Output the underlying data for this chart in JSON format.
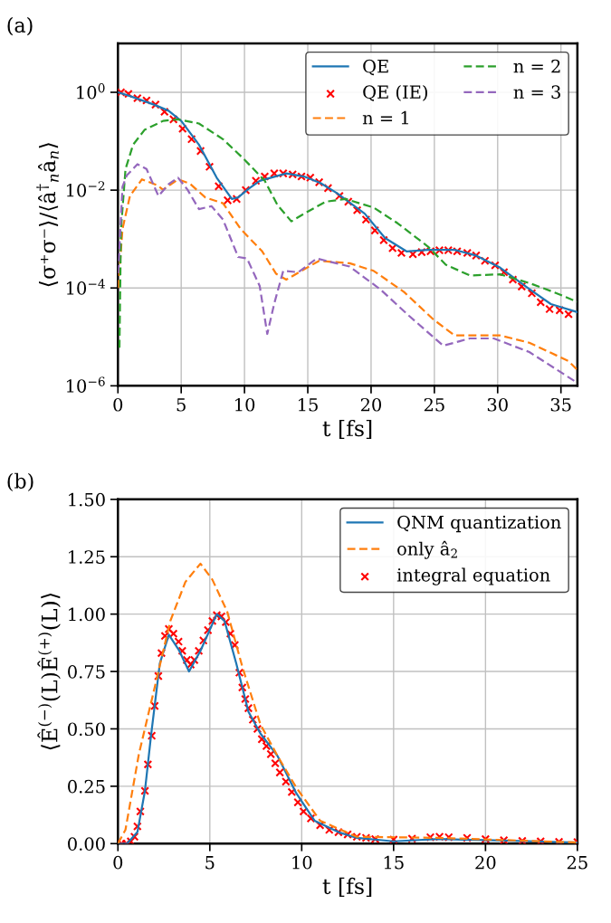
{
  "chart_data": [
    {
      "type": "line",
      "xlabel": "t [fs]",
      "ylabel": "⟨σ⁺σ⁻⟩/⟨â$^{†}$$_{n}$â$_{n}$⟩",
      "annotations": [
        "(a)"
      ],
      "log": "y",
      "grid": true,
      "legend": "top right",
      "xlim": [
        0,
        36.3
      ],
      "ylim": [
        1e-06,
        10
      ],
      "xticks": [
        0,
        5,
        10,
        15,
        20,
        25,
        30,
        35
      ],
      "yticks": [
        {
          "value": 1e-06,
          "label": "10$^{−6}$"
        },
        {
          "value": 0.0001,
          "label": "10$^{−4}$"
        },
        {
          "value": 0.01,
          "label": "10$^{−2}$"
        },
        {
          "value": 1,
          "label": "10$^{0}$"
        }
      ],
      "series": [
        {
          "name": "QE",
          "color": "#1f77b4",
          "line_style": "solid",
          "x": [
            0,
            1,
            2.85,
            4,
            5,
            6.4,
            7.8,
            9.0,
            9.5,
            10.3,
            11.2,
            13.3,
            14.7,
            16,
            17.3,
            19.5,
            21.1,
            22.8,
            24.5,
            26.6,
            28.3,
            30.2,
            32.5,
            34.2,
            36.3
          ],
          "values": [
            1,
            0.83,
            0.56,
            0.42,
            0.26,
            0.085,
            0.018,
            0.0066,
            0.0071,
            0.0105,
            0.0155,
            0.022,
            0.019,
            0.014,
            0.0087,
            0.0033,
            0.00105,
            0.00056,
            0.0006,
            0.0006,
            0.00046,
            0.00026,
            9.5e-05,
            4.7e-05,
            3.2e-05
          ]
        },
        {
          "type": "scatter",
          "name": "QE (IE)",
          "color": "#ff0000",
          "marker": "cross",
          "x": [
            0.24,
            0.83,
            1.54,
            2.26,
            2.97,
            3.68,
            4.39,
            5.11,
            5.82,
            6.53,
            7.24,
            7.96,
            8.67,
            9.38,
            10.1,
            10.9,
            11.6,
            12.35,
            13.06,
            13.8,
            14.5,
            15.2,
            15.9,
            16.6,
            17.5,
            18.2,
            18.9,
            19.6,
            20.3,
            21.0,
            21.7,
            22.4,
            23.3,
            24.0,
            24.7,
            25.4,
            26.1,
            26.8,
            27.6,
            28.3,
            29.0,
            29.8,
            30.5,
            31.2,
            31.9,
            32.7,
            33.4,
            34.1,
            34.9,
            35.6
          ],
          "values": [
            1.0,
            0.93,
            0.76,
            0.68,
            0.56,
            0.4,
            0.28,
            0.18,
            0.11,
            0.063,
            0.03,
            0.012,
            0.0062,
            0.0066,
            0.01,
            0.0155,
            0.019,
            0.022,
            0.022,
            0.021,
            0.019,
            0.018,
            0.0145,
            0.011,
            0.0076,
            0.0058,
            0.0039,
            0.0025,
            0.0015,
            0.00095,
            0.00065,
            0.00052,
            0.00049,
            0.00054,
            0.00056,
            0.00059,
            0.00059,
            0.00056,
            0.00052,
            0.00046,
            0.00036,
            0.00029,
            0.00021,
            0.000148,
            0.000107,
            7.8e-05,
            5.1e-05,
            3.7e-05,
            3.5e-05,
            2.9e-05
          ]
        },
        {
          "name": "n = 1",
          "color": "#ff7f0e",
          "line_style": "dashed",
          "x": [
            0.02,
            0.36,
            0.95,
            1.9,
            3.1,
            3.56,
            4.75,
            5.7,
            6.9,
            8.3,
            9.7,
            11.4,
            12.5,
            13.3,
            14.5,
            15.9,
            18.3,
            20.2,
            22.6,
            24.9,
            26.6,
            30.2,
            32.5,
            35.6,
            36.3
          ],
          "values": [
            0.0001,
            0.0016,
            0.0076,
            0.0166,
            0.0126,
            0.0102,
            0.0166,
            0.0135,
            0.0071,
            0.0054,
            0.0016,
            0.00056,
            0.000195,
            0.000148,
            0.000224,
            0.00036,
            0.00032,
            0.000224,
            8.3e-05,
            2.3e-05,
            1.07e-05,
            1.07e-05,
            7.6e-06,
            3.2e-06,
            2.1e-06
          ]
        },
        {
          "name": "n = 2",
          "color": "#2ca02c",
          "line_style": "dashed",
          "x": [
            0.12,
            0.24,
            0.6,
            1.2,
            2.1,
            3.56,
            4.75,
            6.4,
            8.3,
            10.0,
            11.6,
            12.6,
            13.7,
            14.7,
            16.4,
            18.0,
            20.2,
            22.1,
            24.5,
            25.9,
            27.8,
            30.2,
            32.5,
            34.4,
            36.3
          ],
          "values": [
            6e-06,
            0.0016,
            0.027,
            0.085,
            0.17,
            0.26,
            0.28,
            0.23,
            0.11,
            0.042,
            0.0155,
            0.005,
            0.0023,
            0.0033,
            0.0058,
            0.0066,
            0.0044,
            0.0021,
            0.0007,
            0.0003,
            0.00018,
            0.00019,
            0.000126,
            8.3e-05,
            5.2e-05
          ]
        },
        {
          "name": "n = 3",
          "color": "#9467bd",
          "line_style": "dashed",
          "x": [
            0.02,
            0.36,
            0.7,
            1.54,
            2.26,
            3.2,
            4.04,
            4.75,
            5.5,
            6.4,
            7.4,
            8.3,
            9.5,
            10.2,
            11.2,
            11.8,
            12.35,
            13.06,
            14.25,
            15.7,
            18.3,
            20.7,
            23.0,
            25.7,
            27.8,
            29.7,
            32.5,
            36.3
          ],
          "values": [
            0.0002,
            0.0117,
            0.02,
            0.034,
            0.027,
            0.0076,
            0.0135,
            0.018,
            0.0102,
            0.0041,
            0.0047,
            0.0025,
            0.00043,
            0.0004,
            0.00011,
            1.15e-05,
            4.8e-05,
            0.000224,
            0.00021,
            0.0004,
            0.000275,
            9.5e-05,
            2.7e-05,
            6.6e-06,
            9.3e-06,
            9.3e-06,
            4.9e-06,
            1.15e-06
          ]
        }
      ]
    },
    {
      "type": "line",
      "xlabel": "t [fs]",
      "ylabel": "⟨Ê$^{(−)}$(L)Ê$^{(+)}$(L)⟩",
      "annotations": [
        "(b)"
      ],
      "grid": true,
      "legend": "top right",
      "xlim": [
        0,
        25
      ],
      "ylim": [
        0,
        1.5
      ],
      "xticks": [
        0,
        5,
        10,
        15,
        20,
        25
      ],
      "yticks": [
        {
          "value": 0,
          "label": "0.00"
        },
        {
          "value": 0.25,
          "label": "0.25"
        },
        {
          "value": 0.5,
          "label": "0.50"
        },
        {
          "value": 0.75,
          "label": "0.75"
        },
        {
          "value": 1,
          "label": "1.00"
        },
        {
          "value": 1.25,
          "label": "1.25"
        },
        {
          "value": 1.5,
          "label": "1.50"
        }
      ],
      "series": [
        {
          "name": "QNM quantization",
          "color": "#1f77b4",
          "line_style": "solid",
          "x": [
            0,
            0.5,
            1.06,
            1.47,
            1.8,
            2.28,
            2.77,
            3.34,
            3.87,
            4.49,
            5.38,
            5.8,
            6.44,
            7.1,
            7.75,
            8.7,
            9.7,
            10.7,
            12,
            13,
            15,
            17.5,
            20,
            25
          ],
          "values": [
            0,
            0,
            0.05,
            0.23,
            0.47,
            0.785,
            0.91,
            0.84,
            0.75,
            0.84,
            1.0,
            0.97,
            0.785,
            0.575,
            0.48,
            0.38,
            0.22,
            0.1,
            0.05,
            0.025,
            0.01,
            0.02,
            0.015,
            0.005
          ]
        },
        {
          "name": "only â$_{2}$",
          "color": "#ff7f0e",
          "line_style": "dashed",
          "x": [
            0,
            0.41,
            1.14,
            1.88,
            2.85,
            3.67,
            4.49,
            5.14,
            5.95,
            6.77,
            7.75,
            8.7,
            9.7,
            11,
            13,
            17.5,
            25
          ],
          "values": [
            0,
            0.06,
            0.39,
            0.64,
            0.97,
            1.14,
            1.22,
            1.15,
            1.01,
            0.77,
            0.52,
            0.38,
            0.245,
            0.1,
            0.03,
            0.025,
            0.005
          ]
        },
        {
          "type": "scatter",
          "name": "integral equation",
          "color": "#ff0000",
          "marker": "cross",
          "x": [
            0.2,
            0.45,
            0.7,
            0.9,
            1.06,
            1.22,
            1.47,
            1.63,
            1.84,
            2.0,
            2.2,
            2.37,
            2.56,
            2.77,
            3.02,
            3.3,
            3.5,
            3.75,
            3.96,
            4.16,
            4.4,
            4.65,
            4.9,
            5.14,
            5.38,
            5.63,
            5.87,
            6.12,
            6.36,
            6.61,
            6.77,
            6.93,
            7.1,
            7.34,
            7.59,
            7.83,
            8.08,
            8.32,
            8.56,
            8.81,
            9.14,
            9.46,
            9.79,
            10.1,
            10.5,
            11.0,
            11.5,
            12,
            12.5,
            13,
            13.5,
            14,
            15,
            16,
            17,
            17.5,
            18,
            19,
            20,
            21,
            22,
            23,
            24,
            25
          ],
          "values": [
            0,
            0,
            0.01,
            0.03,
            0.075,
            0.14,
            0.23,
            0.345,
            0.47,
            0.6,
            0.73,
            0.83,
            0.905,
            0.935,
            0.915,
            0.88,
            0.84,
            0.8,
            0.78,
            0.8,
            0.84,
            0.885,
            0.93,
            0.97,
            0.995,
            0.99,
            0.965,
            0.915,
            0.865,
            0.745,
            0.68,
            0.63,
            0.59,
            0.54,
            0.5,
            0.455,
            0.425,
            0.39,
            0.35,
            0.31,
            0.27,
            0.225,
            0.18,
            0.14,
            0.11,
            0.08,
            0.06,
            0.05,
            0.04,
            0.03,
            0.025,
            0.02,
            0.018,
            0.022,
            0.028,
            0.03,
            0.028,
            0.025,
            0.02,
            0.015,
            0.012,
            0.01,
            0.008,
            0.007
          ]
        }
      ]
    }
  ]
}
